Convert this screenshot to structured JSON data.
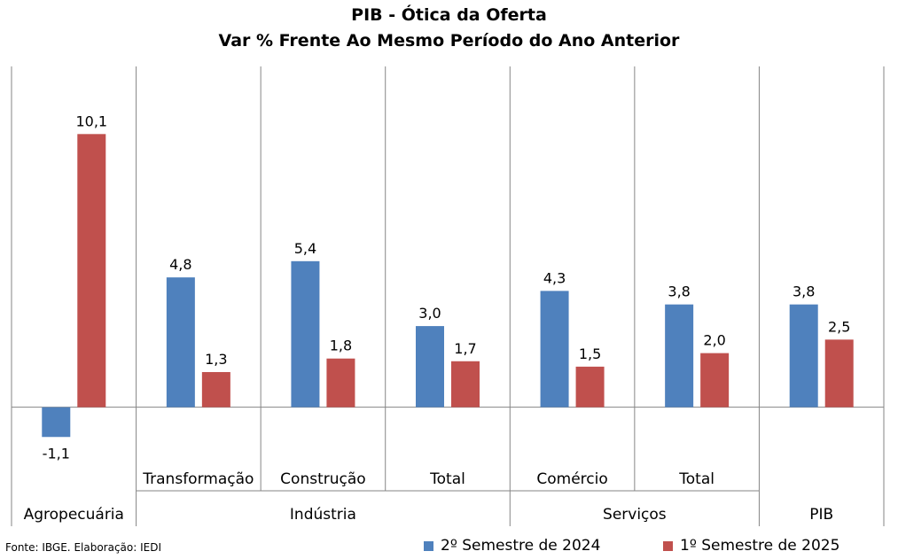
{
  "chart_data": {
    "type": "bar",
    "title": "PIB - Ótica da Oferta",
    "subtitle": "Var % Frente Ao Mesmo Período do Ano Anterior",
    "categories": [
      "Agropecuária",
      "Transformação",
      "Construção",
      "Total",
      "Comércio",
      "Total",
      "PIB"
    ],
    "groups": [
      {
        "label": "Agropecuária",
        "categories": [
          ""
        ]
      },
      {
        "label": "Indústria",
        "categories": [
          "Transformação",
          "Construção",
          "Total"
        ]
      },
      {
        "label": "Serviços",
        "categories": [
          "Comércio",
          "Total"
        ]
      },
      {
        "label": "PIB",
        "categories": [
          ""
        ]
      }
    ],
    "series": [
      {
        "name": "2º Semestre de 2024",
        "color": "#4f81bd",
        "values": [
          -1.1,
          4.8,
          5.4,
          3.0,
          4.3,
          3.8,
          3.8
        ],
        "labels": [
          "-1,1",
          "4,8",
          "5,4",
          "3,0",
          "4,3",
          "3,8",
          "3,8"
        ]
      },
      {
        "name": "1º Semestre de 2025",
        "color": "#c0504d",
        "values": [
          10.1,
          1.3,
          1.8,
          1.7,
          1.5,
          2.0,
          2.5
        ],
        "labels": [
          "10,1",
          "1,3",
          "1,8",
          "1,7",
          "1,5",
          "2,0",
          "2,5"
        ]
      }
    ],
    "ylim": [
      -4.4,
      12.6
    ],
    "grid": false,
    "legend_position": "bottom-right"
  },
  "source": "Fonte: IBGE. Elaboração: IEDI"
}
